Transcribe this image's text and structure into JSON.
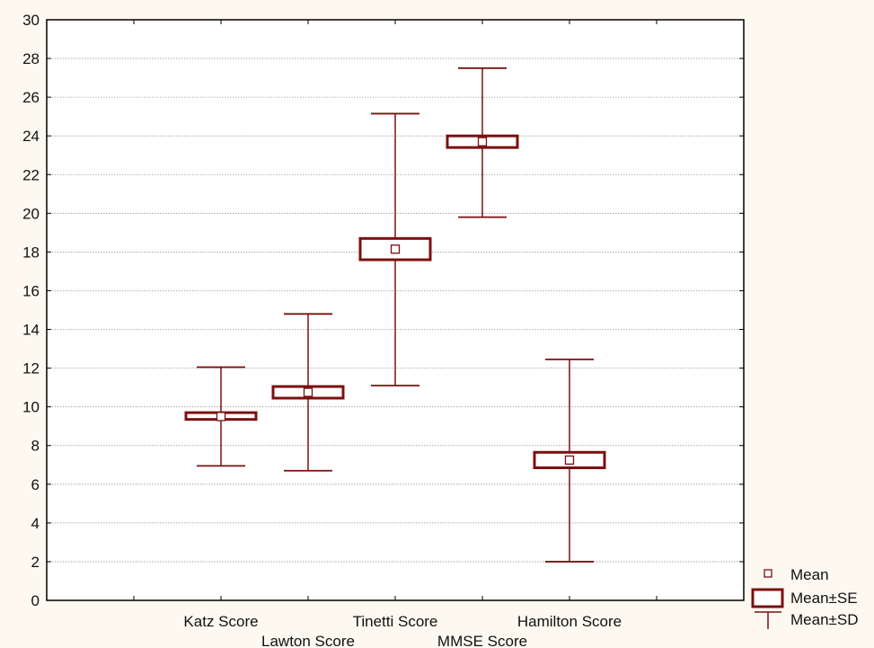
{
  "chart_data": {
    "type": "box",
    "title": "",
    "xlabel": "",
    "ylabel": "",
    "ylim": [
      0,
      30
    ],
    "yticks": [
      0,
      2,
      4,
      6,
      8,
      10,
      12,
      14,
      16,
      18,
      20,
      22,
      24,
      26,
      28,
      30
    ],
    "grid": true,
    "legend_position": "bottom-right",
    "categories": [
      "Katz Score",
      "Lawton Score",
      "Tinetti Score",
      "MMSE Score",
      "Hamilton Score"
    ],
    "series": [
      {
        "mean": [
          9.5,
          10.75,
          18.15,
          23.7,
          7.25
        ],
        "se_low": [
          9.35,
          10.45,
          17.6,
          23.4,
          6.85
        ],
        "se_high": [
          9.7,
          11.05,
          18.7,
          24.0,
          7.65
        ],
        "sd_low": [
          6.95,
          6.7,
          11.1,
          19.8,
          2.0
        ],
        "sd_high": [
          12.05,
          14.8,
          25.15,
          27.5,
          12.45
        ]
      }
    ],
    "legend": [
      "Mean",
      "Mean±SE",
      "Mean±SD"
    ],
    "colors": {
      "marker": "#7b1010",
      "background": "#fdf9f0",
      "grid": "#999999"
    }
  }
}
